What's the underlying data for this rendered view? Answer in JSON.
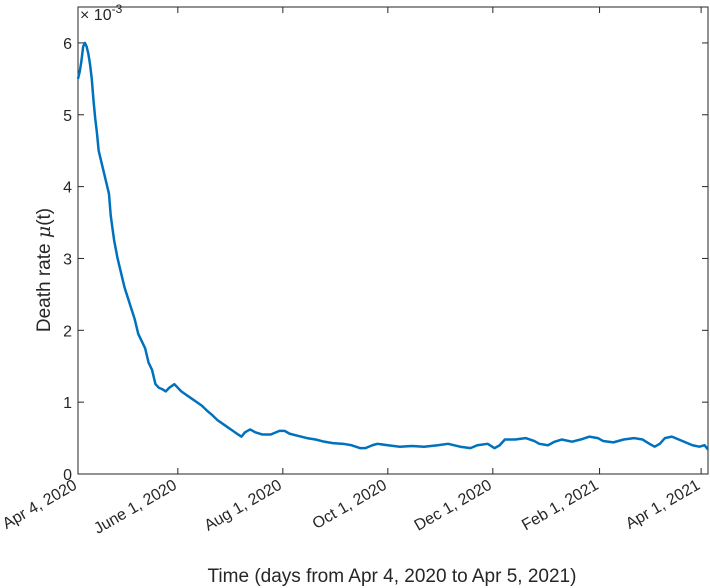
{
  "chart_data": {
    "type": "line",
    "xlabel": "Time (days from Apr 4, 2020 to Apr 5, 2021)",
    "ylabel": {
      "prefix": "Death rate ",
      "symbol": "μ",
      "suffix": "(t)"
    },
    "y_exponent": {
      "base": "× 10",
      "exp": "-3"
    },
    "xlim": [
      "2020-04-04",
      "2021-04-05"
    ],
    "ylim": [
      0,
      6.5
    ],
    "y_scale": 0.001,
    "yticks": [
      0,
      1,
      2,
      3,
      4,
      5,
      6
    ],
    "xticks": [
      {
        "date": "2020-04-04",
        "label": "Apr 4, 2020"
      },
      {
        "date": "2020-06-01",
        "label": "June 1, 2020"
      },
      {
        "date": "2020-08-01",
        "label": "Aug 1, 2020"
      },
      {
        "date": "2020-10-01",
        "label": "Oct 1, 2020"
      },
      {
        "date": "2020-12-01",
        "label": "Dec 1, 2020"
      },
      {
        "date": "2021-02-01",
        "label": "Feb 1, 2021"
      },
      {
        "date": "2021-04-01",
        "label": "Apr 1, 2021"
      }
    ],
    "grid": false,
    "series": [
      {
        "color": "#0072BD",
        "points": [
          [
            "2020-04-04",
            5.5
          ],
          [
            "2020-04-05",
            5.6
          ],
          [
            "2020-04-06",
            5.75
          ],
          [
            "2020-04-07",
            5.95
          ],
          [
            "2020-04-08",
            6.0
          ],
          [
            "2020-04-09",
            5.95
          ],
          [
            "2020-04-10",
            5.85
          ],
          [
            "2020-04-11",
            5.7
          ],
          [
            "2020-04-12",
            5.5
          ],
          [
            "2020-04-13",
            5.2
          ],
          [
            "2020-04-14",
            4.95
          ],
          [
            "2020-04-15",
            4.75
          ],
          [
            "2020-04-16",
            4.5
          ],
          [
            "2020-04-18",
            4.3
          ],
          [
            "2020-04-20",
            4.1
          ],
          [
            "2020-04-22",
            3.9
          ],
          [
            "2020-04-23",
            3.6
          ],
          [
            "2020-04-25",
            3.25
          ],
          [
            "2020-04-27",
            3.0
          ],
          [
            "2020-04-29",
            2.8
          ],
          [
            "2020-05-01",
            2.6
          ],
          [
            "2020-05-03",
            2.45
          ],
          [
            "2020-05-05",
            2.3
          ],
          [
            "2020-05-07",
            2.15
          ],
          [
            "2020-05-09",
            1.95
          ],
          [
            "2020-05-11",
            1.85
          ],
          [
            "2020-05-13",
            1.75
          ],
          [
            "2020-05-15",
            1.55
          ],
          [
            "2020-05-17",
            1.45
          ],
          [
            "2020-05-19",
            1.25
          ],
          [
            "2020-05-21",
            1.2
          ],
          [
            "2020-05-23",
            1.18
          ],
          [
            "2020-05-25",
            1.15
          ],
          [
            "2020-05-27",
            1.2
          ],
          [
            "2020-05-30",
            1.25
          ],
          [
            "2020-06-03",
            1.15
          ],
          [
            "2020-06-06",
            1.1
          ],
          [
            "2020-06-09",
            1.05
          ],
          [
            "2020-06-12",
            1.0
          ],
          [
            "2020-06-15",
            0.95
          ],
          [
            "2020-06-18",
            0.88
          ],
          [
            "2020-06-21",
            0.82
          ],
          [
            "2020-06-24",
            0.75
          ],
          [
            "2020-06-27",
            0.7
          ],
          [
            "2020-06-30",
            0.65
          ],
          [
            "2020-07-03",
            0.6
          ],
          [
            "2020-07-06",
            0.55
          ],
          [
            "2020-07-08",
            0.52
          ],
          [
            "2020-07-10",
            0.58
          ],
          [
            "2020-07-13",
            0.62
          ],
          [
            "2020-07-16",
            0.58
          ],
          [
            "2020-07-20",
            0.55
          ],
          [
            "2020-07-25",
            0.55
          ],
          [
            "2020-07-30",
            0.6
          ],
          [
            "2020-08-02",
            0.6
          ],
          [
            "2020-08-05",
            0.56
          ],
          [
            "2020-08-10",
            0.53
          ],
          [
            "2020-08-15",
            0.5
          ],
          [
            "2020-08-20",
            0.48
          ],
          [
            "2020-08-25",
            0.45
          ],
          [
            "2020-08-30",
            0.43
          ],
          [
            "2020-09-05",
            0.42
          ],
          [
            "2020-09-10",
            0.4
          ],
          [
            "2020-09-15",
            0.36
          ],
          [
            "2020-09-18",
            0.36
          ],
          [
            "2020-09-22",
            0.4
          ],
          [
            "2020-09-25",
            0.42
          ],
          [
            "2020-10-01",
            0.4
          ],
          [
            "2020-10-08",
            0.38
          ],
          [
            "2020-10-15",
            0.39
          ],
          [
            "2020-10-22",
            0.38
          ],
          [
            "2020-10-30",
            0.4
          ],
          [
            "2020-11-05",
            0.42
          ],
          [
            "2020-11-12",
            0.38
          ],
          [
            "2020-11-18",
            0.36
          ],
          [
            "2020-11-22",
            0.4
          ],
          [
            "2020-11-28",
            0.42
          ],
          [
            "2020-12-02",
            0.36
          ],
          [
            "2020-12-05",
            0.4
          ],
          [
            "2020-12-08",
            0.48
          ],
          [
            "2020-12-14",
            0.48
          ],
          [
            "2020-12-20",
            0.5
          ],
          [
            "2020-12-25",
            0.46
          ],
          [
            "2020-12-28",
            0.42
          ],
          [
            "2021-01-02",
            0.4
          ],
          [
            "2021-01-06",
            0.45
          ],
          [
            "2021-01-10",
            0.48
          ],
          [
            "2021-01-16",
            0.45
          ],
          [
            "2021-01-21",
            0.48
          ],
          [
            "2021-01-26",
            0.52
          ],
          [
            "2021-01-31",
            0.5
          ],
          [
            "2021-02-03",
            0.46
          ],
          [
            "2021-02-09",
            0.44
          ],
          [
            "2021-02-15",
            0.48
          ],
          [
            "2021-02-21",
            0.5
          ],
          [
            "2021-02-26",
            0.48
          ],
          [
            "2021-03-02",
            0.42
          ],
          [
            "2021-03-05",
            0.38
          ],
          [
            "2021-03-08",
            0.42
          ],
          [
            "2021-03-11",
            0.5
          ],
          [
            "2021-03-15",
            0.52
          ],
          [
            "2021-03-19",
            0.48
          ],
          [
            "2021-03-23",
            0.44
          ],
          [
            "2021-03-27",
            0.4
          ],
          [
            "2021-03-31",
            0.38
          ],
          [
            "2021-04-03",
            0.4
          ],
          [
            "2021-04-05",
            0.34
          ]
        ]
      }
    ]
  }
}
